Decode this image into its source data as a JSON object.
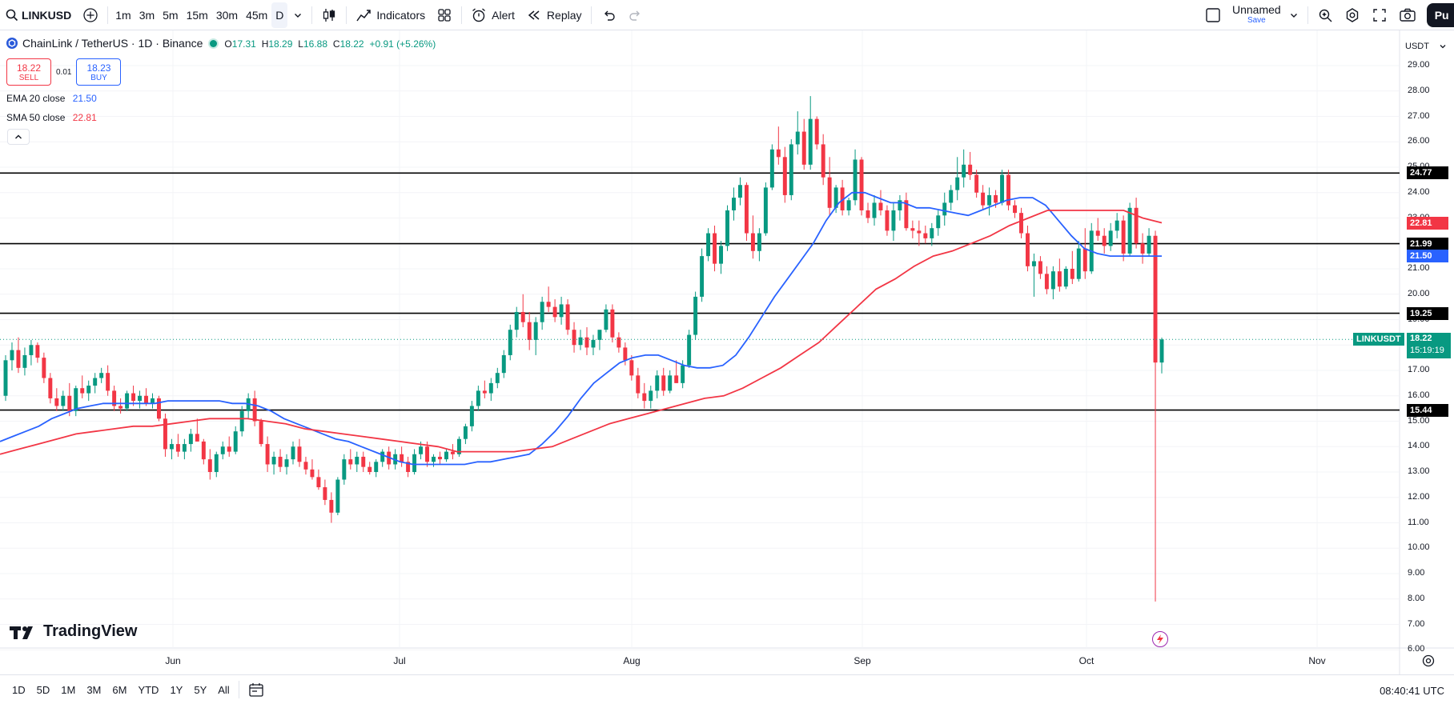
{
  "toolbar": {
    "symbol": "LINKUSD",
    "timeframes": [
      "1m",
      "3m",
      "5m",
      "15m",
      "30m",
      "45m",
      "D"
    ],
    "active_timeframe": "D",
    "indicators_label": "Indicators",
    "alert_label": "Alert",
    "replay_label": "Replay",
    "layout_name": "Unnamed",
    "layout_save": "Save",
    "publish_label": "Pu"
  },
  "legend": {
    "title": "ChainLink / TetherUS · 1D · Binance",
    "o_label": "O",
    "o": "17.31",
    "h_label": "H",
    "h": "18.29",
    "l_label": "L",
    "l": "16.88",
    "c_label": "C",
    "c": "18.22",
    "change": "+0.91 (+5.26%)",
    "sell_price": "18.22",
    "sell_label": "SELL",
    "spread": "0.01",
    "buy_price": "18.23",
    "buy_label": "BUY",
    "ema_label": "EMA 20 close",
    "ema_value": "21.50",
    "sma_label": "SMA 50 close",
    "sma_value": "22.81"
  },
  "price_scale": {
    "currency": "USDT",
    "labels": [
      "29.00",
      "28.00",
      "27.00",
      "26.00",
      "25.00",
      "24.00",
      "23.00",
      "22.00",
      "21.00",
      "20.00",
      "19.00",
      "18.00",
      "17.00",
      "16.00",
      "15.00",
      "14.00",
      "13.00",
      "12.00",
      "11.00",
      "10.00",
      "9.00",
      "8.00",
      "7.00",
      "6.00"
    ],
    "level_tags": [
      "24.77",
      "21.99",
      "19.25",
      "15.44"
    ],
    "sma_tag": "22.81",
    "ema_tag": "21.50",
    "symbol_tag": "LINKUSDT",
    "last_price": "18.22",
    "countdown": "15:19:19"
  },
  "time_axis": {
    "months": [
      "Jun",
      "Jul",
      "Aug",
      "Sep",
      "Oct",
      "Nov"
    ]
  },
  "bottom": {
    "ranges": [
      "1D",
      "5D",
      "1M",
      "3M",
      "6M",
      "YTD",
      "1Y",
      "5Y",
      "All"
    ],
    "clock": "08:40:41 UTC"
  },
  "branding": {
    "logo_text": "TradingView"
  },
  "colors": {
    "up": "#089981",
    "down": "#f23645",
    "ema": "#2962ff",
    "sma": "#f23645",
    "level": "#000000"
  },
  "chart_data": {
    "type": "candlestick",
    "y_range": [
      6,
      29.4
    ],
    "levels": [
      24.77,
      21.99,
      19.25,
      15.44
    ],
    "last_price": 18.22,
    "candles_ohlc": [
      [
        16.0,
        17.6,
        15.8,
        17.4
      ],
      [
        17.4,
        18.1,
        17.0,
        17.8
      ],
      [
        17.8,
        18.3,
        16.9,
        17.1
      ],
      [
        17.1,
        17.9,
        16.8,
        17.6
      ],
      [
        17.6,
        18.2,
        17.2,
        18.0
      ],
      [
        18.0,
        18.1,
        17.3,
        17.5
      ],
      [
        17.5,
        17.7,
        16.5,
        16.7
      ],
      [
        16.7,
        16.9,
        15.7,
        15.9
      ],
      [
        15.9,
        16.3,
        15.4,
        15.6
      ],
      [
        15.6,
        16.2,
        15.4,
        16.0
      ],
      [
        16.0,
        16.5,
        15.2,
        15.4
      ],
      [
        15.4,
        16.4,
        15.2,
        16.3
      ],
      [
        16.3,
        16.8,
        15.9,
        16.1
      ],
      [
        16.1,
        16.6,
        15.8,
        16.4
      ],
      [
        16.4,
        16.9,
        16.1,
        16.7
      ],
      [
        16.7,
        17.1,
        16.5,
        16.9
      ],
      [
        16.9,
        17.2,
        16.0,
        16.2
      ],
      [
        16.2,
        16.4,
        15.4,
        15.6
      ],
      [
        15.6,
        15.9,
        15.3,
        15.5
      ],
      [
        15.5,
        16.2,
        15.4,
        16.1
      ],
      [
        16.1,
        16.4,
        15.6,
        15.8
      ],
      [
        15.8,
        16.2,
        15.5,
        16.0
      ],
      [
        16.0,
        16.3,
        15.6,
        15.7
      ],
      [
        15.7,
        16.1,
        15.5,
        15.9
      ],
      [
        15.9,
        16.0,
        15.0,
        15.1
      ],
      [
        15.1,
        15.3,
        13.6,
        13.9
      ],
      [
        13.9,
        14.3,
        13.5,
        14.1
      ],
      [
        14.1,
        14.5,
        13.6,
        13.8
      ],
      [
        13.8,
        14.3,
        13.5,
        14.1
      ],
      [
        14.1,
        14.7,
        13.8,
        14.5
      ],
      [
        14.5,
        15.1,
        14.2,
        14.2
      ],
      [
        14.2,
        14.3,
        13.3,
        13.5
      ],
      [
        13.5,
        13.9,
        12.7,
        13.0
      ],
      [
        13.0,
        13.8,
        12.8,
        13.7
      ],
      [
        13.7,
        14.2,
        13.5,
        14.0
      ],
      [
        14.0,
        14.4,
        13.6,
        13.8
      ],
      [
        13.8,
        14.8,
        13.7,
        14.6
      ],
      [
        14.6,
        15.6,
        14.4,
        15.4
      ],
      [
        15.4,
        16.1,
        15.1,
        15.9
      ],
      [
        15.9,
        16.2,
        14.8,
        15.0
      ],
      [
        15.0,
        15.1,
        14.0,
        14.1
      ],
      [
        14.1,
        14.4,
        13.0,
        13.3
      ],
      [
        13.3,
        13.8,
        12.9,
        13.6
      ],
      [
        13.6,
        13.9,
        13.0,
        13.2
      ],
      [
        13.2,
        13.7,
        12.9,
        13.5
      ],
      [
        13.5,
        14.2,
        13.3,
        14.0
      ],
      [
        14.0,
        14.3,
        13.2,
        13.4
      ],
      [
        13.4,
        13.6,
        12.9,
        13.1
      ],
      [
        13.1,
        13.5,
        12.7,
        12.8
      ],
      [
        12.8,
        13.1,
        12.3,
        12.4
      ],
      [
        12.4,
        12.7,
        11.7,
        11.9
      ],
      [
        11.9,
        12.2,
        11.0,
        11.4
      ],
      [
        11.4,
        12.8,
        11.3,
        12.7
      ],
      [
        12.7,
        13.7,
        12.5,
        13.5
      ],
      [
        13.5,
        13.9,
        13.1,
        13.3
      ],
      [
        13.3,
        13.8,
        13.0,
        13.6
      ],
      [
        13.6,
        13.8,
        13.0,
        13.2
      ],
      [
        13.2,
        13.4,
        12.9,
        13.0
      ],
      [
        13.0,
        13.5,
        12.8,
        13.4
      ],
      [
        13.4,
        13.9,
        13.2,
        13.8
      ],
      [
        13.8,
        14.0,
        13.1,
        13.3
      ],
      [
        13.3,
        13.9,
        13.1,
        13.7
      ],
      [
        13.7,
        14.0,
        13.2,
        13.4
      ],
      [
        13.4,
        13.6,
        12.8,
        13.0
      ],
      [
        13.0,
        13.9,
        12.9,
        13.7
      ],
      [
        13.7,
        14.2,
        13.5,
        14.0
      ],
      [
        14.0,
        14.2,
        13.2,
        13.4
      ],
      [
        13.4,
        13.7,
        13.2,
        13.6
      ],
      [
        13.6,
        13.8,
        13.3,
        13.5
      ],
      [
        13.5,
        13.9,
        13.4,
        13.8
      ],
      [
        13.8,
        14.1,
        13.5,
        13.7
      ],
      [
        13.7,
        14.4,
        13.6,
        14.3
      ],
      [
        14.3,
        14.9,
        14.1,
        14.8
      ],
      [
        14.8,
        15.8,
        14.6,
        15.6
      ],
      [
        15.6,
        16.4,
        15.4,
        16.2
      ],
      [
        16.2,
        16.6,
        15.9,
        16.1
      ],
      [
        16.1,
        16.7,
        15.8,
        16.5
      ],
      [
        16.5,
        17.1,
        16.3,
        16.9
      ],
      [
        16.9,
        17.8,
        16.7,
        17.6
      ],
      [
        17.6,
        18.8,
        17.4,
        18.6
      ],
      [
        18.6,
        19.5,
        18.3,
        19.3
      ],
      [
        19.3,
        20.0,
        18.7,
        18.9
      ],
      [
        18.9,
        19.3,
        17.8,
        18.2
      ],
      [
        18.2,
        19.1,
        17.6,
        18.9
      ],
      [
        18.9,
        19.9,
        18.6,
        19.7
      ],
      [
        19.7,
        20.3,
        19.3,
        19.5
      ],
      [
        19.5,
        19.8,
        18.9,
        19.1
      ],
      [
        19.1,
        19.9,
        18.8,
        19.6
      ],
      [
        19.6,
        19.8,
        18.4,
        18.6
      ],
      [
        18.6,
        18.9,
        17.7,
        18.0
      ],
      [
        18.0,
        18.6,
        17.8,
        18.3
      ],
      [
        18.3,
        18.7,
        17.6,
        17.9
      ],
      [
        17.9,
        18.4,
        17.6,
        18.2
      ],
      [
        18.2,
        18.4,
        17.8,
        18.6
      ],
      [
        18.6,
        19.6,
        18.5,
        19.4
      ],
      [
        19.4,
        19.6,
        18.1,
        18.3
      ],
      [
        18.3,
        18.5,
        17.7,
        17.9
      ],
      [
        17.9,
        18.1,
        17.2,
        17.4
      ],
      [
        17.4,
        17.6,
        16.6,
        16.8
      ],
      [
        16.8,
        17.1,
        15.9,
        16.1
      ],
      [
        16.1,
        16.5,
        15.5,
        15.8
      ],
      [
        15.8,
        16.4,
        15.5,
        16.2
      ],
      [
        16.2,
        17.0,
        15.9,
        16.8
      ],
      [
        16.8,
        17.1,
        16.0,
        16.2
      ],
      [
        16.2,
        17.0,
        16.1,
        16.8
      ],
      [
        16.8,
        17.4,
        16.5,
        16.5
      ],
      [
        16.5,
        17.4,
        16.3,
        17.2
      ],
      [
        17.2,
        18.6,
        17.1,
        18.4
      ],
      [
        18.4,
        20.1,
        18.2,
        19.9
      ],
      [
        19.9,
        21.8,
        19.7,
        21.5
      ],
      [
        21.5,
        22.6,
        21.3,
        22.4
      ],
      [
        22.4,
        22.7,
        20.9,
        21.2
      ],
      [
        21.2,
        22.1,
        20.8,
        21.9
      ],
      [
        21.9,
        23.5,
        21.7,
        23.3
      ],
      [
        23.3,
        24.2,
        22.9,
        23.8
      ],
      [
        23.8,
        24.6,
        23.5,
        24.3
      ],
      [
        24.3,
        24.4,
        22.1,
        22.4
      ],
      [
        22.4,
        23.1,
        21.4,
        21.7
      ],
      [
        21.7,
        22.6,
        21.3,
        22.4
      ],
      [
        22.4,
        24.4,
        22.3,
        24.2
      ],
      [
        24.2,
        25.9,
        24.1,
        25.7
      ],
      [
        25.7,
        26.6,
        25.1,
        25.4
      ],
      [
        25.4,
        25.8,
        23.6,
        23.9
      ],
      [
        23.9,
        26.1,
        23.7,
        25.9
      ],
      [
        25.9,
        27.2,
        25.5,
        26.4
      ],
      [
        26.4,
        26.9,
        24.9,
        25.1
      ],
      [
        25.1,
        27.8,
        24.9,
        26.9
      ],
      [
        26.9,
        27.0,
        25.7,
        25.9
      ],
      [
        25.9,
        26.3,
        24.3,
        24.6
      ],
      [
        24.6,
        25.4,
        23.1,
        23.4
      ],
      [
        23.4,
        24.3,
        23.2,
        24.2
      ],
      [
        24.2,
        24.5,
        23.1,
        23.3
      ],
      [
        23.3,
        23.8,
        23.1,
        23.7
      ],
      [
        23.7,
        25.7,
        23.5,
        25.3
      ],
      [
        25.3,
        25.4,
        23.1,
        23.3
      ],
      [
        23.3,
        23.6,
        22.8,
        23.0
      ],
      [
        23.0,
        23.9,
        22.7,
        23.6
      ],
      [
        23.6,
        24.1,
        23.1,
        23.3
      ],
      [
        23.3,
        23.5,
        22.3,
        22.5
      ],
      [
        22.5,
        23.6,
        22.1,
        23.3
      ],
      [
        23.3,
        23.9,
        22.9,
        23.7
      ],
      [
        23.7,
        24.0,
        22.5,
        22.6
      ],
      [
        22.6,
        22.9,
        22.2,
        22.5
      ],
      [
        22.5,
        22.9,
        21.9,
        22.4
      ],
      [
        22.4,
        22.7,
        22.0,
        22.2
      ],
      [
        22.2,
        22.8,
        21.9,
        22.6
      ],
      [
        22.6,
        23.3,
        22.3,
        23.1
      ],
      [
        23.1,
        24.0,
        22.7,
        23.6
      ],
      [
        23.6,
        24.3,
        23.3,
        24.1
      ],
      [
        24.1,
        25.4,
        23.7,
        24.6
      ],
      [
        24.6,
        25.7,
        24.2,
        25.1
      ],
      [
        25.1,
        25.6,
        24.5,
        24.7
      ],
      [
        24.7,
        24.9,
        23.8,
        24.0
      ],
      [
        24.0,
        24.3,
        23.3,
        23.5
      ],
      [
        23.5,
        24.2,
        23.1,
        23.9
      ],
      [
        23.9,
        24.1,
        23.4,
        23.6
      ],
      [
        23.6,
        24.9,
        23.5,
        24.7
      ],
      [
        24.7,
        24.9,
        23.3,
        23.5
      ],
      [
        23.5,
        23.7,
        23.0,
        23.2
      ],
      [
        23.2,
        23.4,
        22.2,
        22.4
      ],
      [
        22.4,
        22.7,
        20.9,
        21.1
      ],
      [
        21.1,
        21.6,
        19.9,
        21.3
      ],
      [
        21.3,
        21.5,
        20.6,
        20.8
      ],
      [
        20.8,
        21.1,
        20.0,
        20.2
      ],
      [
        20.2,
        21.1,
        19.8,
        20.9
      ],
      [
        20.9,
        21.4,
        20.1,
        20.3
      ],
      [
        20.3,
        21.1,
        20.2,
        21.0
      ],
      [
        21.0,
        21.7,
        20.4,
        20.6
      ],
      [
        20.6,
        22.1,
        20.5,
        21.8
      ],
      [
        21.8,
        22.6,
        20.6,
        20.9
      ],
      [
        20.9,
        22.8,
        20.8,
        22.5
      ],
      [
        22.5,
        23.0,
        22.1,
        22.3
      ],
      [
        22.3,
        22.6,
        21.6,
        21.9
      ],
      [
        21.9,
        22.8,
        21.7,
        22.5
      ],
      [
        22.5,
        23.2,
        22.2,
        22.9
      ],
      [
        22.9,
        23.1,
        21.3,
        21.6
      ],
      [
        21.6,
        23.6,
        21.5,
        23.4
      ],
      [
        23.4,
        23.8,
        21.8,
        22.0
      ],
      [
        22.0,
        22.4,
        21.2,
        21.6
      ],
      [
        21.6,
        22.6,
        21.5,
        22.3
      ],
      [
        22.3,
        22.5,
        7.9,
        17.31
      ],
      [
        17.31,
        18.29,
        16.88,
        18.22
      ]
    ],
    "ema20": [
      14.2,
      14.4,
      14.6,
      14.8,
      15.1,
      15.3,
      15.5,
      15.6,
      15.7,
      15.7,
      15.7,
      15.7,
      15.7,
      15.8,
      15.8,
      15.8,
      15.8,
      15.8,
      15.7,
      15.7,
      15.6,
      15.4,
      15.1,
      14.9,
      14.7,
      14.5,
      14.3,
      14.2,
      14.0,
      13.8,
      13.6,
      13.4,
      13.3,
      13.3,
      13.3,
      13.3,
      13.3,
      13.4,
      13.4,
      13.5,
      13.6,
      13.7,
      14.1,
      14.6,
      15.2,
      15.9,
      16.5,
      16.9,
      17.3,
      17.5,
      17.6,
      17.6,
      17.4,
      17.2,
      17.1,
      17.1,
      17.2,
      17.6,
      18.3,
      19.1,
      19.9,
      20.6,
      21.3,
      22.0,
      22.9,
      23.6,
      24.0,
      24.0,
      23.8,
      23.6,
      23.6,
      23.4,
      23.4,
      23.3,
      23.2,
      23.1,
      23.3,
      23.5,
      23.7,
      23.8,
      23.8,
      23.5,
      22.9,
      22.3,
      21.8,
      21.6,
      21.5,
      21.5,
      21.5,
      21.5,
      21.5
    ],
    "sma50": [
      13.7,
      13.9,
      14.1,
      14.3,
      14.5,
      14.6,
      14.7,
      14.8,
      14.8,
      14.9,
      15.0,
      15.1,
      15.1,
      15.1,
      15.0,
      14.9,
      14.7,
      14.6,
      14.5,
      14.4,
      14.3,
      14.2,
      14.1,
      14.0,
      13.8,
      13.8,
      13.8,
      13.8,
      13.9,
      14.0,
      14.3,
      14.6,
      14.9,
      15.1,
      15.3,
      15.5,
      15.7,
      15.9,
      16.0,
      16.3,
      16.7,
      17.1,
      17.6,
      18.1,
      18.8,
      19.5,
      20.2,
      20.6,
      21.1,
      21.5,
      21.7,
      22.0,
      22.3,
      22.7,
      23.0,
      23.3,
      23.3,
      23.3,
      23.3,
      23.3,
      23.0,
      22.81
    ]
  }
}
